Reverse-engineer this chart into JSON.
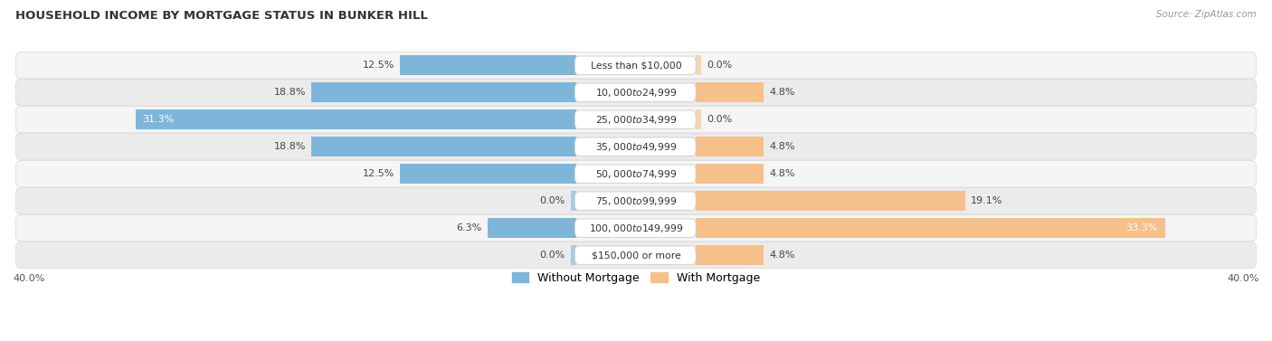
{
  "title": "HOUSEHOLD INCOME BY MORTGAGE STATUS IN BUNKER HILL",
  "source": "Source: ZipAtlas.com",
  "categories": [
    "Less than $10,000",
    "$10,000 to $24,999",
    "$25,000 to $34,999",
    "$35,000 to $49,999",
    "$50,000 to $74,999",
    "$75,000 to $99,999",
    "$100,000 to $149,999",
    "$150,000 or more"
  ],
  "without_mortgage": [
    12.5,
    18.8,
    31.3,
    18.8,
    12.5,
    0.0,
    6.3,
    0.0
  ],
  "with_mortgage": [
    0.0,
    4.8,
    0.0,
    4.8,
    4.8,
    19.1,
    33.3,
    4.8
  ],
  "color_without": "#7EB6D9",
  "color_with": "#F5C08A",
  "xlim": 40.0,
  "legend_without": "Without Mortgage",
  "legend_with": "With Mortgage",
  "row_bg_even": "#F5F5F5",
  "row_bg_odd": "#EBEBEB",
  "row_border": "#D8D8D8"
}
